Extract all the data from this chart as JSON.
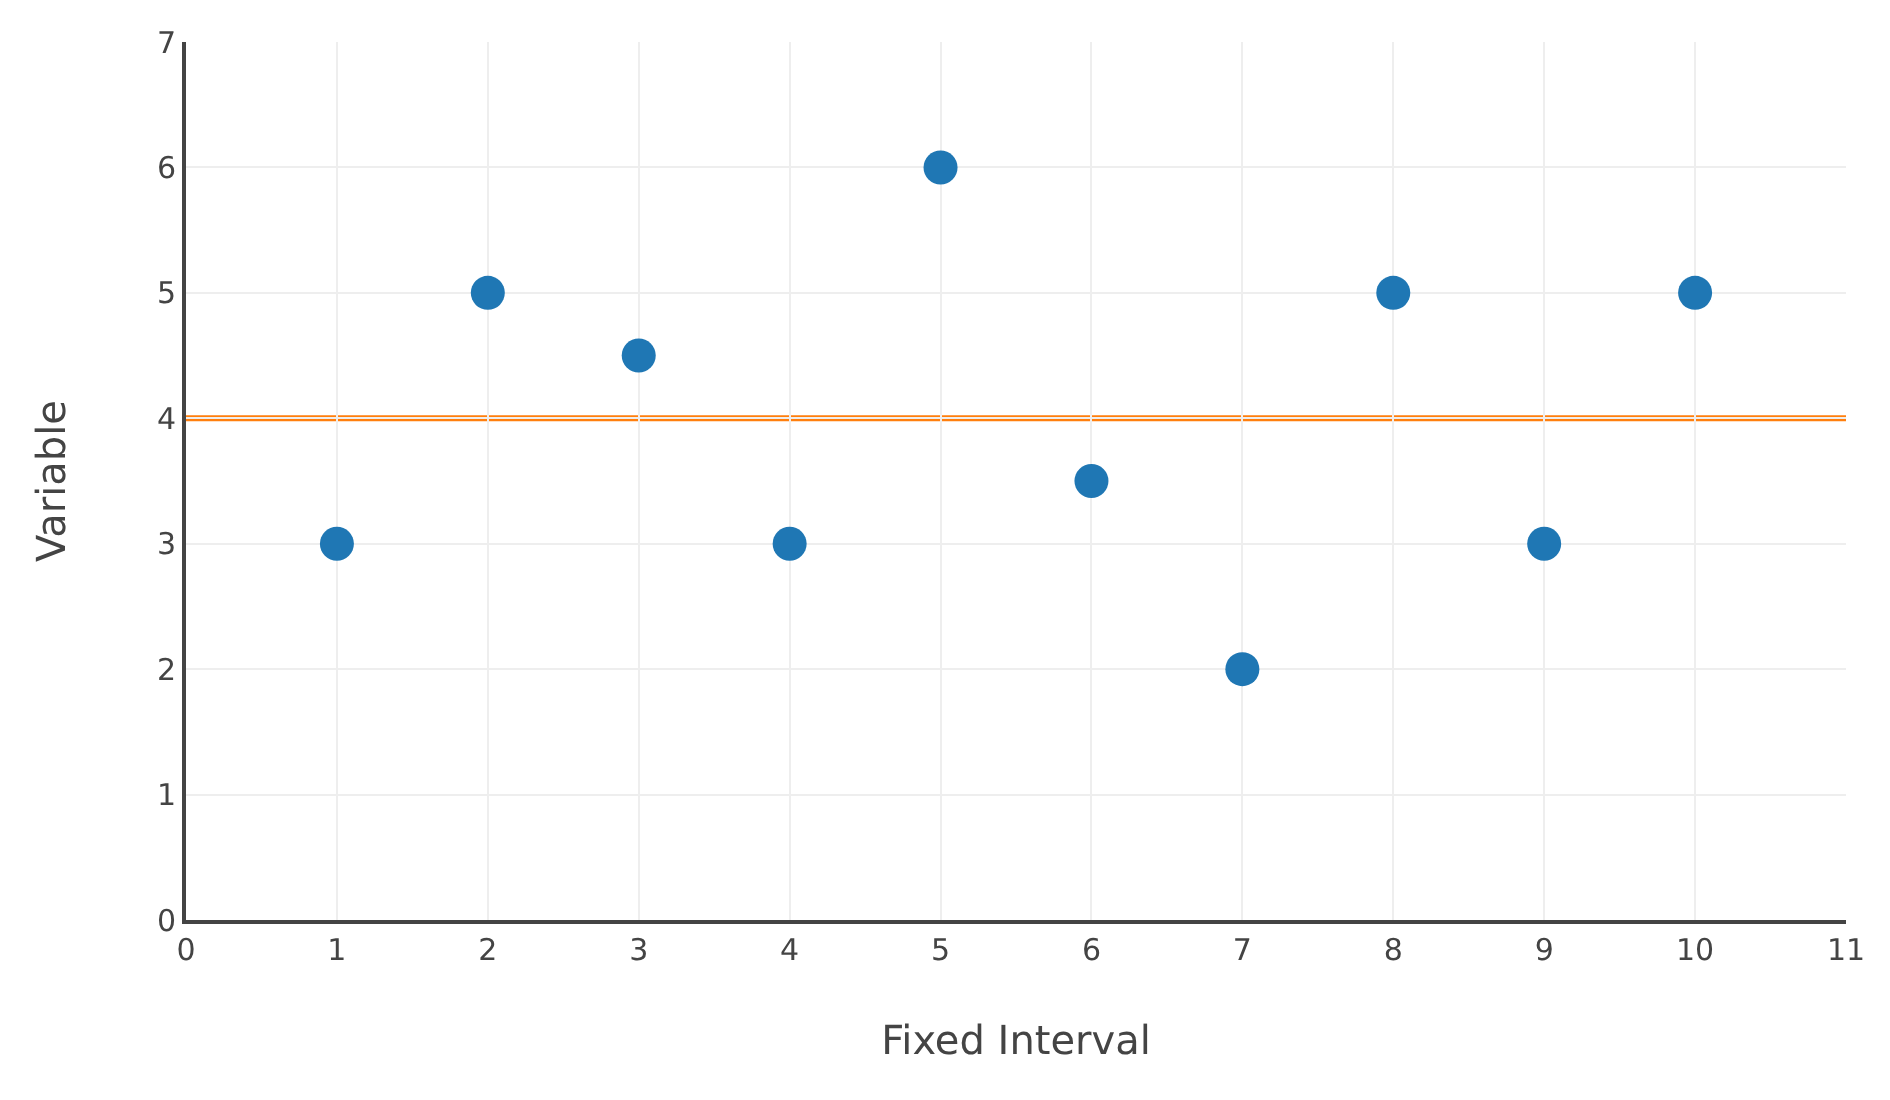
{
  "chart_data": {
    "type": "scatter",
    "xlabel": "Fixed Interval",
    "ylabel": "Variable",
    "x": [
      1,
      2,
      3,
      4,
      5,
      6,
      7,
      8,
      9,
      10
    ],
    "series": [
      {
        "color": "#1f77b4",
        "values": [
          3,
          5,
          4.5,
          3,
          6,
          3.5,
          2,
          5,
          3,
          5
        ]
      }
    ],
    "xlim": [
      0,
      11
    ],
    "xticks": [
      0,
      1,
      2,
      3,
      4,
      5,
      6,
      7,
      8,
      9,
      10,
      11
    ],
    "ylim": [
      0,
      7
    ],
    "yticks": [
      0,
      1,
      2,
      3,
      4,
      5,
      6,
      7
    ],
    "ref_lines": [
      {
        "axis": "y",
        "value": 4,
        "color": "#ff7f0e",
        "line_style": "solid"
      }
    ],
    "grid": true,
    "marker": "circle"
  }
}
